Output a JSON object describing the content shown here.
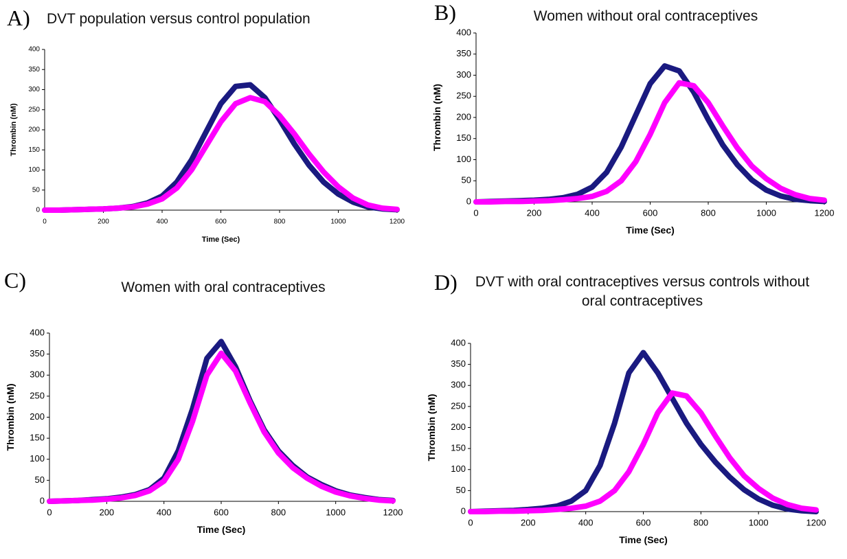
{
  "chart_data": [
    {
      "type": "line",
      "label": "A)",
      "title": "DVT population versus control population",
      "xlabel": "Time (Sec)",
      "ylabel": "Thrombin (nM)",
      "x": [
        0,
        50,
        100,
        150,
        200,
        250,
        300,
        350,
        400,
        450,
        500,
        550,
        600,
        650,
        700,
        750,
        800,
        850,
        900,
        950,
        1000,
        1050,
        1100,
        1150,
        1200
      ],
      "series": [
        {
          "color": "#1a1a80",
          "values": [
            0,
            0,
            1,
            2,
            3,
            5,
            9,
            18,
            35,
            70,
            125,
            195,
            265,
            308,
            312,
            280,
            225,
            165,
            112,
            70,
            40,
            20,
            8,
            3,
            1
          ]
        },
        {
          "color": "#ff00ff",
          "values": [
            0,
            0,
            1,
            2,
            3,
            5,
            8,
            15,
            28,
            55,
            100,
            160,
            220,
            265,
            280,
            270,
            235,
            190,
            140,
            95,
            58,
            30,
            13,
            5,
            2
          ]
        }
      ],
      "xlim": [
        0,
        1200
      ],
      "xticks": [
        0,
        200,
        400,
        600,
        800,
        1000,
        1200
      ],
      "ylim": [
        0,
        400
      ],
      "yticks": [
        0,
        50,
        100,
        150,
        200,
        250,
        300,
        350,
        400
      ]
    },
    {
      "type": "line",
      "label": "B)",
      "title": "Women without oral contraceptives",
      "xlabel": "Time (Sec)",
      "ylabel": "Thrombin (nM)",
      "x": [
        0,
        50,
        100,
        150,
        200,
        250,
        300,
        350,
        400,
        450,
        500,
        550,
        600,
        650,
        700,
        750,
        800,
        850,
        900,
        950,
        1000,
        1050,
        1100,
        1150,
        1200
      ],
      "series": [
        {
          "color": "#1a1a80",
          "values": [
            0,
            1,
            2,
            3,
            4,
            6,
            10,
            18,
            35,
            70,
            130,
            205,
            280,
            322,
            310,
            260,
            195,
            135,
            88,
            52,
            28,
            14,
            6,
            3,
            1
          ]
        },
        {
          "color": "#ff00ff",
          "values": [
            0,
            0,
            1,
            1,
            2,
            3,
            5,
            8,
            13,
            25,
            50,
            95,
            160,
            235,
            282,
            275,
            235,
            180,
            128,
            85,
            55,
            32,
            17,
            8,
            4
          ]
        }
      ],
      "xlim": [
        0,
        1200
      ],
      "xticks": [
        0,
        200,
        400,
        600,
        800,
        1000,
        1200
      ],
      "ylim": [
        0,
        400
      ],
      "yticks": [
        0,
        50,
        100,
        150,
        200,
        250,
        300,
        350,
        400
      ]
    },
    {
      "type": "line",
      "label": "C)",
      "title": "Women with oral contraceptives",
      "xlabel": "Time (Sec)",
      "ylabel": "Thrombin (nM)",
      "x": [
        0,
        50,
        100,
        150,
        200,
        250,
        300,
        350,
        400,
        450,
        500,
        550,
        600,
        650,
        700,
        750,
        800,
        850,
        900,
        950,
        1000,
        1050,
        1100,
        1150,
        1200
      ],
      "series": [
        {
          "color": "#1a1a80",
          "values": [
            0,
            1,
            2,
            4,
            6,
            10,
            16,
            28,
            55,
            120,
            220,
            340,
            380,
            320,
            240,
            170,
            120,
            85,
            58,
            40,
            25,
            15,
            9,
            4,
            2
          ]
        },
        {
          "color": "#ff00ff",
          "values": [
            0,
            1,
            2,
            3,
            5,
            8,
            14,
            25,
            48,
            100,
            190,
            300,
            352,
            310,
            235,
            165,
            115,
            80,
            55,
            36,
            22,
            13,
            7,
            3,
            1
          ]
        }
      ],
      "xlim": [
        0,
        1200
      ],
      "xticks": [
        0,
        200,
        400,
        600,
        800,
        1000,
        1200
      ],
      "ylim": [
        0,
        400
      ],
      "yticks": [
        0,
        50,
        100,
        150,
        200,
        250,
        300,
        350,
        400
      ]
    },
    {
      "type": "line",
      "label": "D)",
      "title": "DVT with oral contraceptives versus controls without oral contraceptives",
      "xlabel": "Time (Sec)",
      "ylabel": "Thrombin (nM)",
      "x": [
        0,
        50,
        100,
        150,
        200,
        250,
        300,
        350,
        400,
        450,
        500,
        550,
        600,
        650,
        700,
        750,
        800,
        850,
        900,
        950,
        1000,
        1050,
        1100,
        1150,
        1200
      ],
      "series": [
        {
          "color": "#1a1a80",
          "values": [
            0,
            1,
            2,
            3,
            5,
            8,
            13,
            25,
            50,
            110,
            210,
            330,
            378,
            330,
            270,
            210,
            160,
            118,
            82,
            52,
            30,
            15,
            6,
            2,
            0
          ]
        },
        {
          "color": "#ff00ff",
          "values": [
            0,
            0,
            1,
            1,
            2,
            3,
            5,
            8,
            13,
            25,
            50,
            95,
            160,
            235,
            282,
            275,
            235,
            180,
            128,
            85,
            55,
            32,
            17,
            8,
            4
          ]
        }
      ],
      "xlim": [
        0,
        1200
      ],
      "xticks": [
        0,
        200,
        400,
        600,
        800,
        1000,
        1200
      ],
      "ylim": [
        0,
        400
      ],
      "yticks": [
        0,
        50,
        100,
        150,
        200,
        250,
        300,
        350,
        400
      ]
    }
  ]
}
